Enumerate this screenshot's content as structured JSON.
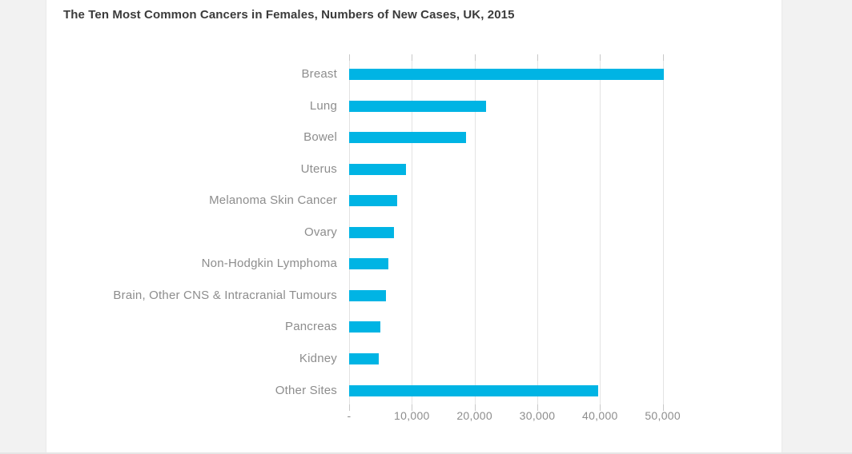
{
  "page": {
    "background_color": "#f2f2f2",
    "card_background_color": "#ffffff"
  },
  "chart_data": {
    "type": "bar",
    "orientation": "horizontal",
    "title": "The Ten Most Common Cancers in Females, Numbers of New Cases, UK, 2015",
    "categories": [
      "Breast",
      "Lung",
      "Bowel",
      "Uterus",
      "Melanoma Skin Cancer",
      "Ovary",
      "Non-Hodgkin Lymphoma",
      "Brain, Other CNS & Intracranial Tumours",
      "Pancreas",
      "Kidney",
      "Other Sites"
    ],
    "values": [
      50200,
      21800,
      18600,
      9000,
      7600,
      7200,
      6200,
      5900,
      5000,
      4700,
      39700
    ],
    "xlabel": "",
    "ylabel": "",
    "x_ticks": [
      0,
      10000,
      20000,
      30000,
      40000,
      50000
    ],
    "x_tick_labels": [
      "-",
      "10,000",
      "20,000",
      "30,000",
      "40,000",
      "50,000"
    ],
    "xlim": [
      0,
      55500
    ],
    "grid": true,
    "legend": false,
    "bar_color": "#00b4e4",
    "label_color": "#8d8d8d",
    "title_color": "#3b3b3b",
    "gridline_color": "#e3e3e3"
  }
}
